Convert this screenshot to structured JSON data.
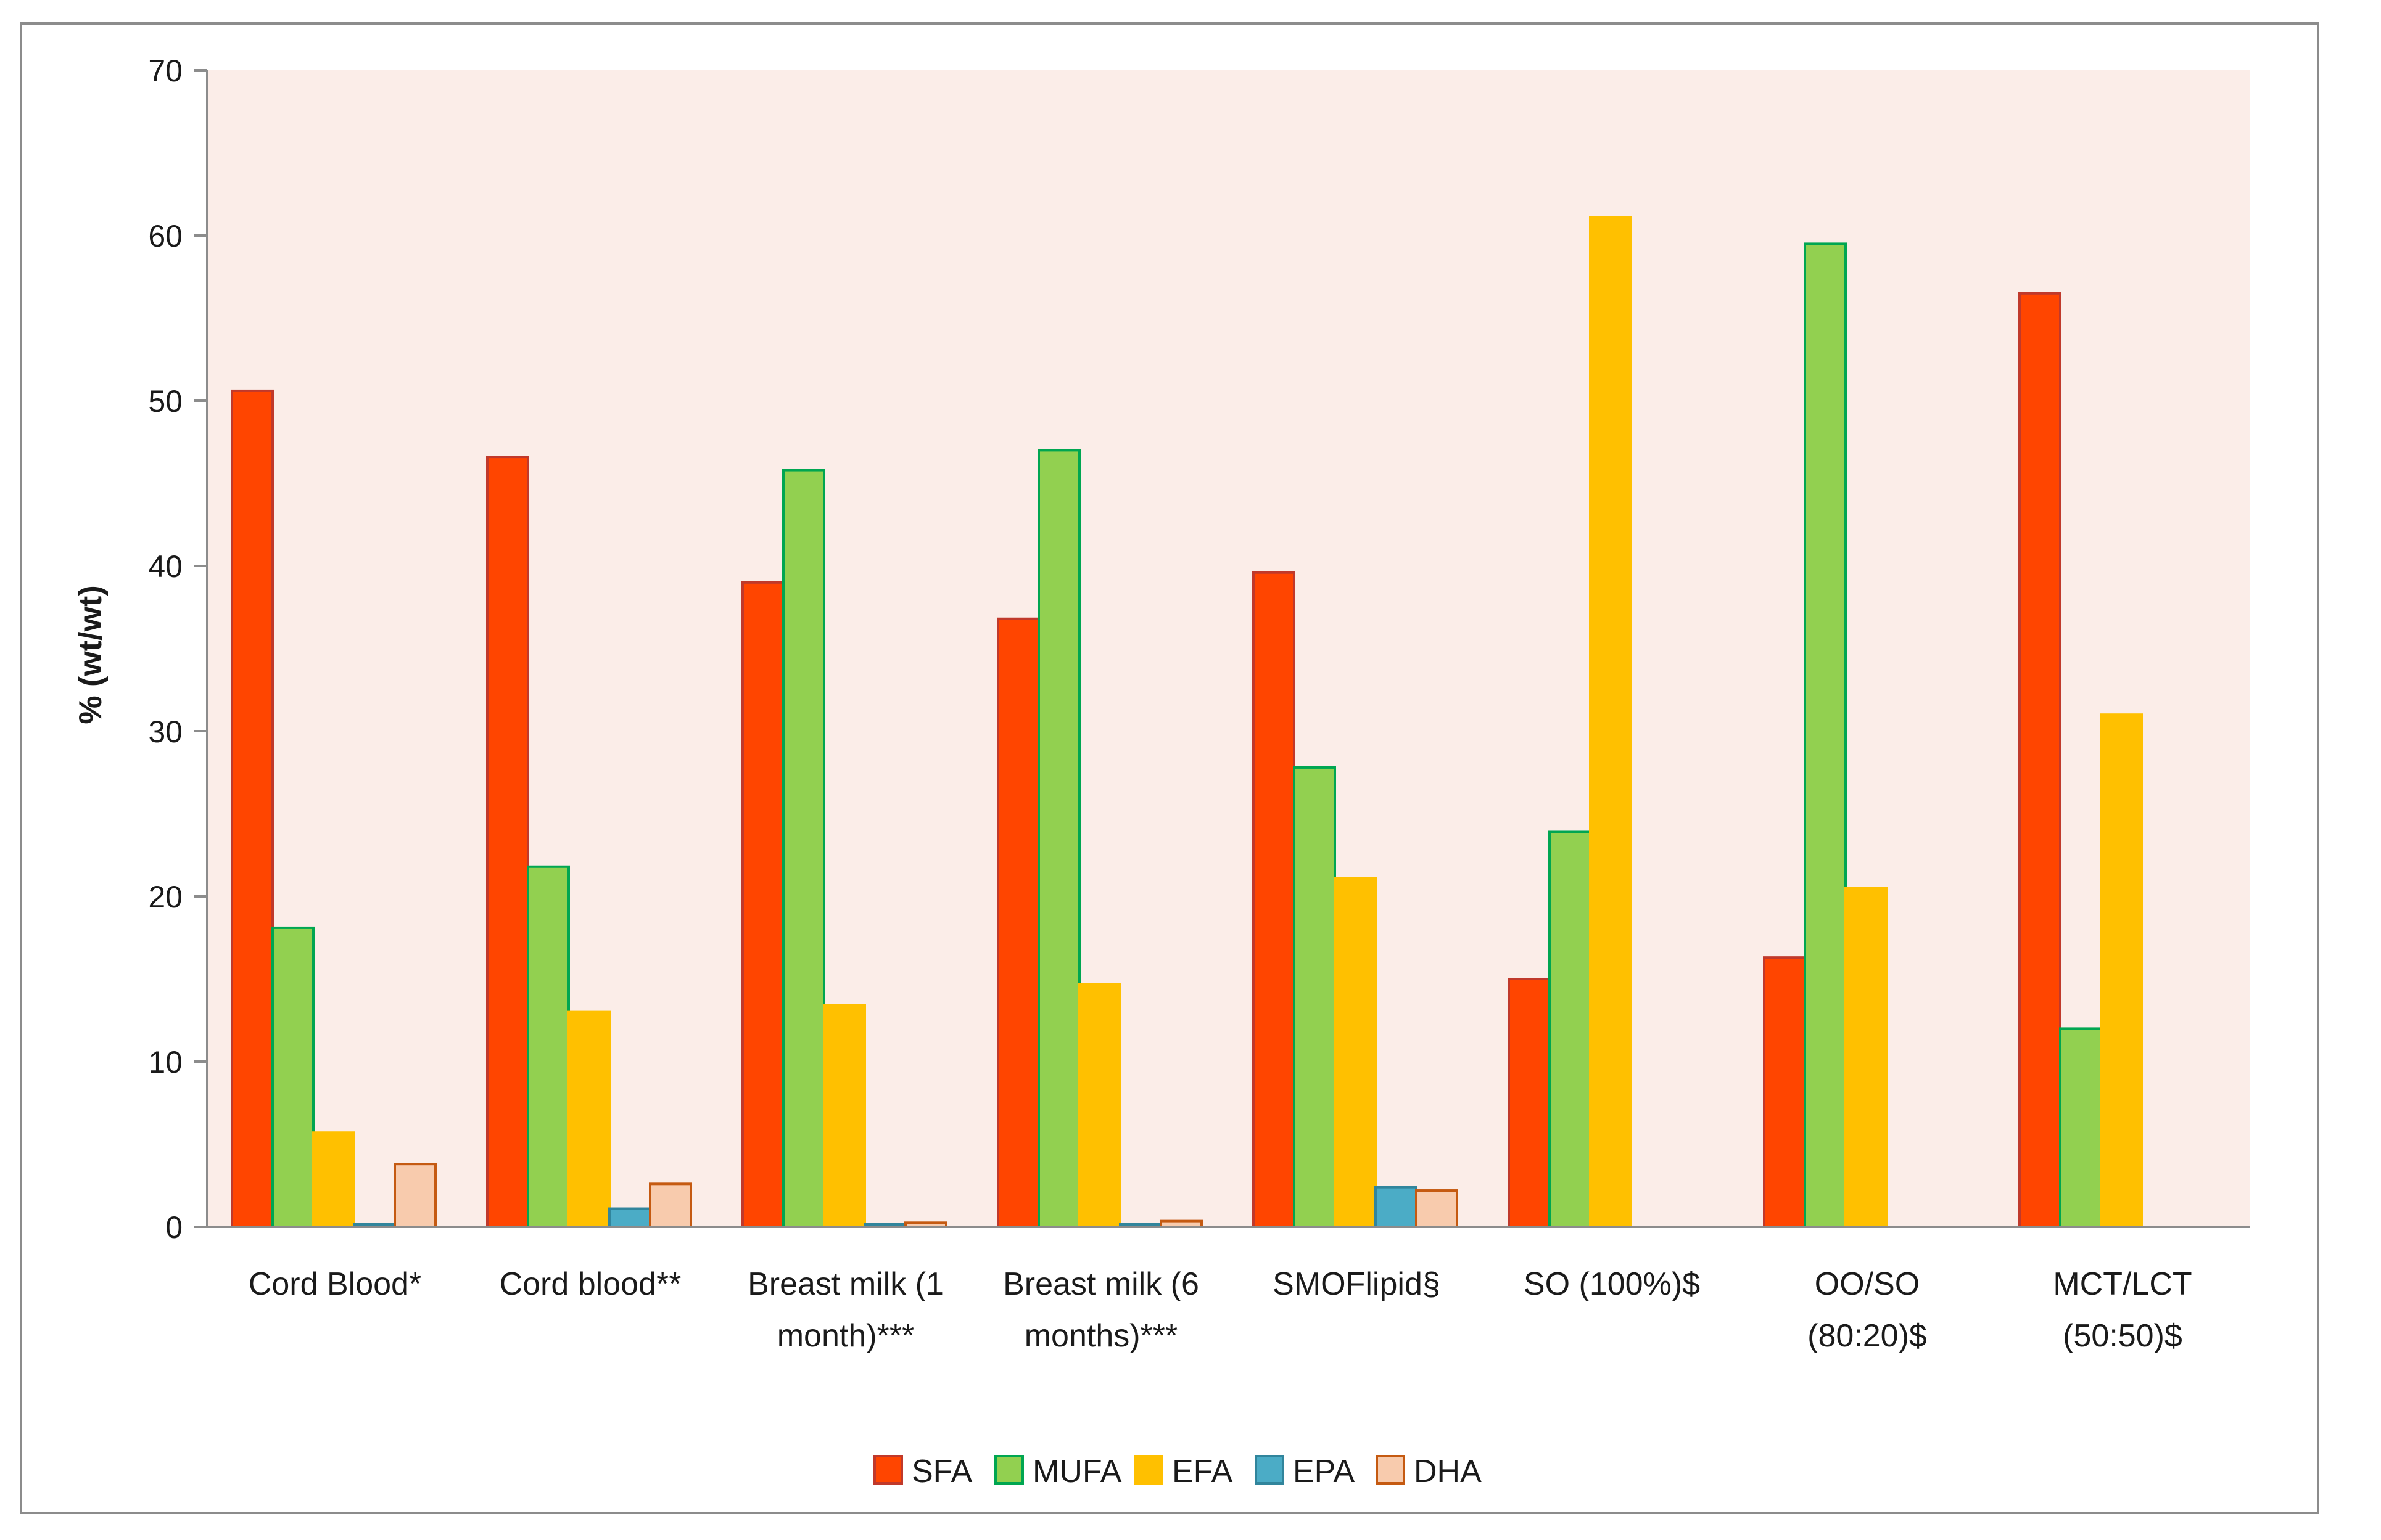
{
  "chart_data": {
    "type": "bar",
    "title": "",
    "xlabel": "",
    "ylabel": "% (wt/wt)",
    "ylim": [
      0,
      70
    ],
    "yticks": [
      0,
      10,
      20,
      30,
      40,
      50,
      60,
      70
    ],
    "grid": false,
    "legend_position": "bottom-center",
    "categories": [
      [
        "Cord Blood*"
      ],
      [
        "Cord blood**"
      ],
      [
        "Breast milk (1",
        "month)***"
      ],
      [
        "Breast milk (6",
        "months)***"
      ],
      [
        "SMOFlipid§"
      ],
      [
        "SO (100%)$"
      ],
      [
        "OO/SO",
        "(80:20)$"
      ],
      [
        "MCT/LCT",
        "(50:50)$"
      ]
    ],
    "series": [
      {
        "name": "SFA",
        "color": "#FF4500",
        "stroke": "#C0392B",
        "values": [
          50.6,
          46.6,
          39.0,
          36.8,
          39.6,
          15.0,
          16.3,
          56.5
        ]
      },
      {
        "name": "MUFA",
        "color": "#92D050",
        "stroke": "#00A651",
        "values": [
          18.1,
          21.8,
          45.8,
          47.0,
          27.8,
          23.9,
          59.5,
          12.0
        ]
      },
      {
        "name": "EFA",
        "color": "#FFC000",
        "stroke": "#FFC000",
        "values": [
          5.7,
          13.0,
          13.4,
          14.7,
          21.1,
          61.1,
          20.5,
          31.0
        ]
      },
      {
        "name": "EPA",
        "color": "#4BACC6",
        "stroke": "#31859C",
        "values": [
          0.15,
          1.1,
          0.15,
          0.15,
          2.4,
          0,
          0,
          0
        ]
      },
      {
        "name": "DHA",
        "color": "#F8CBAD",
        "stroke": "#C55A11",
        "values": [
          3.8,
          2.6,
          0.25,
          0.35,
          2.2,
          0,
          0,
          0
        ]
      }
    ],
    "plot_background": "#FBEDE8"
  }
}
